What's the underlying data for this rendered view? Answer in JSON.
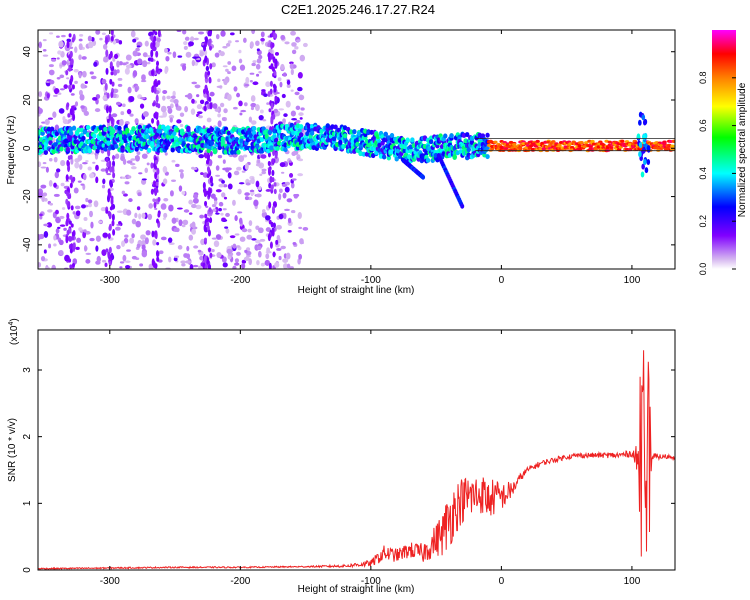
{
  "title": "C2E1.2025.246.17.27.R24",
  "chart_data": [
    {
      "type": "heatmap",
      "xlabel": "Height of straight line (km)",
      "ylabel": "Frequency (Hz)",
      "xlim": [
        -355,
        133
      ],
      "ylim": [
        -50,
        49
      ],
      "xticks": [
        -300,
        -200,
        -100,
        0,
        100
      ],
      "xtick_labels": [
        "-300",
        "-200",
        "-100",
        "0",
        "100"
      ],
      "yticks": [
        -40,
        -20,
        0,
        20,
        40
      ],
      "ytick_labels": [
        "-40",
        "-20",
        "0",
        "20",
        "40"
      ],
      "ridge": {
        "description_points_x": [
          -355,
          -300,
          -250,
          -200,
          -150,
          -120,
          -90,
          -70,
          -50,
          -30,
          -10,
          0,
          50,
          100,
          110,
          133
        ],
        "center_hz": [
          3,
          4,
          4,
          3,
          5,
          4,
          1,
          -1,
          0,
          1,
          1,
          1,
          1,
          1,
          1,
          1
        ]
      },
      "colorbar": {
        "label": "Normalized spectral amplitude",
        "range": [
          0,
          1
        ],
        "ticks": [
          0.0,
          0.2,
          0.4,
          0.6,
          0.8
        ],
        "tick_labels": [
          "0.0",
          "0.2",
          "0.4",
          "0.6",
          "0.8"
        ],
        "colors": [
          "#ffffff",
          "#d6b8f0",
          "#8000ff",
          "#0000ff",
          "#00ffff",
          "#00ff00",
          "#ffff00",
          "#ff8000",
          "#ff0000",
          "#ff00ff"
        ]
      }
    },
    {
      "type": "line",
      "xlabel": "Height of straight line (km)",
      "ylabel": "SNR (10 * v/v)",
      "multiplier_label": "(x10",
      "multiplier_exp": "4",
      "xlim": [
        -355,
        133
      ],
      "ylim": [
        0,
        3.6
      ],
      "xticks": [
        -300,
        -200,
        -100,
        0,
        100
      ],
      "xtick_labels": [
        "-300",
        "-200",
        "-100",
        "0",
        "100"
      ],
      "yticks": [
        0,
        1,
        2,
        3
      ],
      "ytick_labels": [
        "0",
        "1",
        "2",
        "3"
      ],
      "line_color": "#ee2222",
      "series": [
        {
          "name": "SNR",
          "x": [
            -355,
            -300,
            -250,
            -200,
            -150,
            -120,
            -100,
            -90,
            -80,
            -70,
            -60,
            -50,
            -45,
            -40,
            -35,
            -30,
            -25,
            -20,
            -15,
            -10,
            -5,
            0,
            5,
            10,
            15,
            20,
            30,
            40,
            50,
            60,
            70,
            80,
            90,
            100,
            105,
            107,
            109,
            111,
            113,
            115,
            120,
            133
          ],
          "mean": [
            0.02,
            0.03,
            0.04,
            0.04,
            0.05,
            0.06,
            0.1,
            0.25,
            0.22,
            0.3,
            0.25,
            0.45,
            0.55,
            0.75,
            0.95,
            1.05,
            1.1,
            1.1,
            1.15,
            1.05,
            1.1,
            1.1,
            1.15,
            1.25,
            1.4,
            1.5,
            1.6,
            1.65,
            1.7,
            1.72,
            1.72,
            1.72,
            1.72,
            1.75,
            1.6,
            1.2,
            1.7,
            1.5,
            1.7,
            1.68,
            1.7,
            1.7
          ],
          "noise": [
            0.01,
            0.01,
            0.01,
            0.01,
            0.01,
            0.02,
            0.05,
            0.12,
            0.1,
            0.12,
            0.15,
            0.25,
            0.35,
            0.45,
            0.4,
            0.35,
            0.35,
            0.35,
            0.3,
            0.3,
            0.28,
            0.2,
            0.18,
            0.1,
            0.06,
            0.05,
            0.04,
            0.04,
            0.04,
            0.04,
            0.04,
            0.04,
            0.05,
            0.05,
            0.3,
            1.5,
            1.8,
            1.5,
            1.5,
            0.1,
            0.04,
            0.04
          ]
        }
      ]
    }
  ]
}
